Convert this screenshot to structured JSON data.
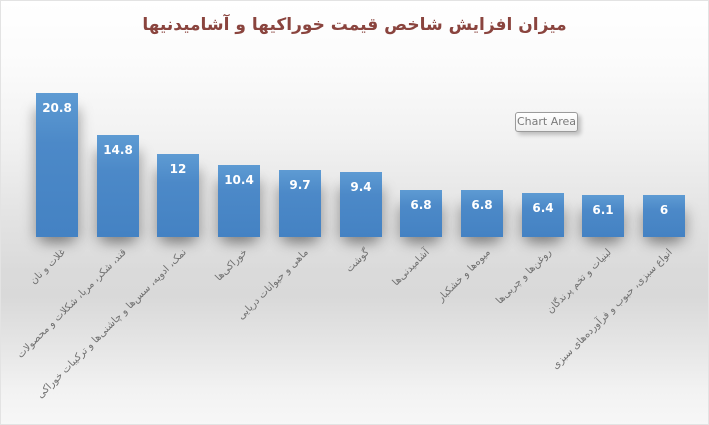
{
  "title": "میزان افزایش شاخص قیمت خوراکیها و آشامیدنیها",
  "tooltip": {
    "label": "Chart Area"
  },
  "colors": {
    "bar": "#4a87c6",
    "bar_light": "#5e9bd3",
    "title": "#8a443e",
    "category_label": "#6f6f6f",
    "value_label": "#ffffff",
    "background_mid": "#d9d9d9"
  },
  "chart_data": {
    "type": "bar",
    "title": "میزان افزایش شاخص قیمت خوراکیها و آشامیدنیها",
    "categories": [
      "غلات و نان",
      "قند، شکر، مربا، شکلات و محصولات",
      "نمک، ادویه، سس‌ها و چاشنی‌ها و ترکیبات خوراکی",
      "خوراکی‌ها",
      "ماهی و حیوانات دریایی",
      "گوشت",
      "آشامیدنی‌ها",
      "میوه‌ها و خشکبار",
      "روغن‌ها و چربی‌ها",
      "لبنیات و تخم پرندگان",
      "انواع سبزی، حبوب و فرآورده‌های سبزی"
    ],
    "values": [
      20.8,
      14.8,
      12,
      10.4,
      9.7,
      9.4,
      6.8,
      6.8,
      6.4,
      6.1,
      6
    ],
    "value_labels": [
      "20.8",
      "14.8",
      "12",
      "10.4",
      "9.7",
      "9.4",
      "6.8",
      "6.8",
      "6.4",
      "6.1",
      "6"
    ],
    "xlabel": "",
    "ylabel": "",
    "ylim": [
      0,
      22
    ],
    "grid": false,
    "legend": false,
    "data_label_position": "inside-end",
    "category_label_rotation_deg": 45,
    "bar_order": "descending"
  }
}
